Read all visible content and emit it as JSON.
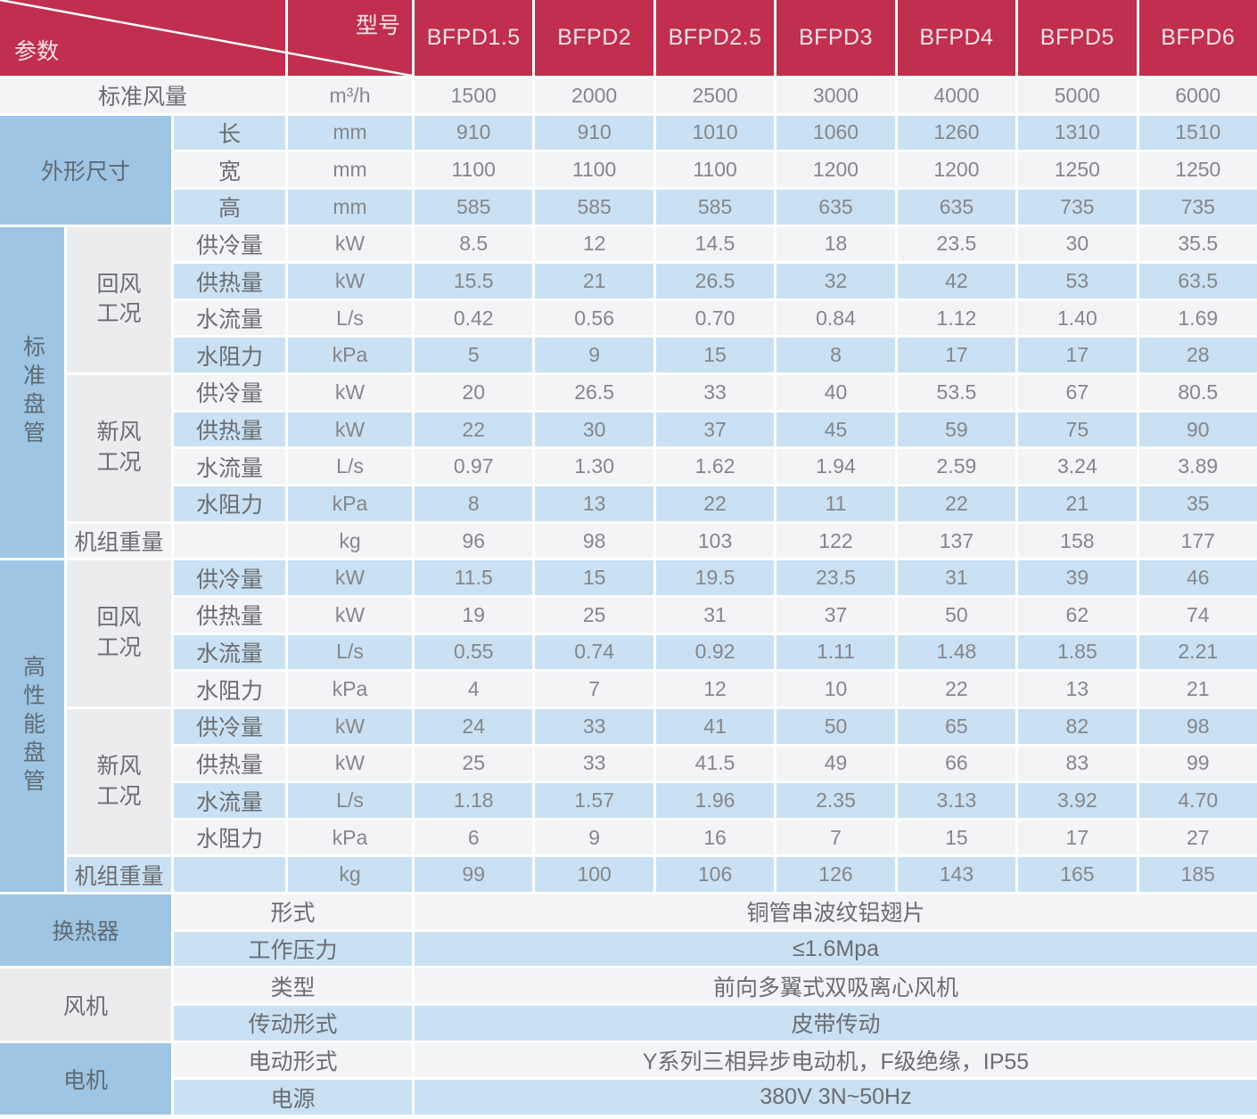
{
  "header": {
    "corner_top_label": "型号",
    "corner_bottom_label": "参数",
    "models": [
      "BFPD1.5",
      "BFPD2",
      "BFPD2.5",
      "BFPD3",
      "BFPD4",
      "BFPD5",
      "BFPD6"
    ]
  },
  "airflow": {
    "label": "标准风量",
    "unit": "m³/h",
    "values": [
      "1500",
      "2000",
      "2500",
      "3000",
      "4000",
      "5000",
      "6000"
    ]
  },
  "dimensions": {
    "label": "外形尺寸",
    "rows": [
      {
        "label": "长",
        "unit": "mm",
        "values": [
          "910",
          "910",
          "1010",
          "1060",
          "1260",
          "1310",
          "1510"
        ]
      },
      {
        "label": "宽",
        "unit": "mm",
        "values": [
          "1100",
          "1100",
          "1100",
          "1200",
          "1200",
          "1250",
          "1250"
        ]
      },
      {
        "label": "高",
        "unit": "mm",
        "values": [
          "585",
          "585",
          "585",
          "635",
          "635",
          "735",
          "735"
        ]
      }
    ]
  },
  "coil_sections": [
    {
      "label": "标准盘管",
      "groups": [
        {
          "label": "回风\n工况",
          "rows": [
            {
              "label": "供冷量",
              "unit": "kW",
              "values": [
                "8.5",
                "12",
                "14.5",
                "18",
                "23.5",
                "30",
                "35.5"
              ]
            },
            {
              "label": "供热量",
              "unit": "kW",
              "values": [
                "15.5",
                "21",
                "26.5",
                "32",
                "42",
                "53",
                "63.5"
              ]
            },
            {
              "label": "水流量",
              "unit": "L/s",
              "values": [
                "0.42",
                "0.56",
                "0.70",
                "0.84",
                "1.12",
                "1.40",
                "1.69"
              ]
            },
            {
              "label": "水阻力",
              "unit": "kPa",
              "values": [
                "5",
                "9",
                "15",
                "8",
                "17",
                "17",
                "28"
              ]
            }
          ]
        },
        {
          "label": "新风\n工况",
          "rows": [
            {
              "label": "供冷量",
              "unit": "kW",
              "values": [
                "20",
                "26.5",
                "33",
                "40",
                "53.5",
                "67",
                "80.5"
              ]
            },
            {
              "label": "供热量",
              "unit": "kW",
              "values": [
                "22",
                "30",
                "37",
                "45",
                "59",
                "75",
                "90"
              ]
            },
            {
              "label": "水流量",
              "unit": "L/s",
              "values": [
                "0.97",
                "1.30",
                "1.62",
                "1.94",
                "2.59",
                "3.24",
                "3.89"
              ]
            },
            {
              "label": "水阻力",
              "unit": "kPa",
              "values": [
                "8",
                "13",
                "22",
                "11",
                "22",
                "21",
                "35"
              ]
            }
          ]
        }
      ],
      "weight_row": {
        "label": "机组重量",
        "unit": "kg",
        "values": [
          "96",
          "98",
          "103",
          "122",
          "137",
          "158",
          "177"
        ]
      }
    },
    {
      "label": "高性能盘管",
      "groups": [
        {
          "label": "回风\n工况",
          "rows": [
            {
              "label": "供冷量",
              "unit": "kW",
              "values": [
                "11.5",
                "15",
                "19.5",
                "23.5",
                "31",
                "39",
                "46"
              ]
            },
            {
              "label": "供热量",
              "unit": "kW",
              "values": [
                "19",
                "25",
                "31",
                "37",
                "50",
                "62",
                "74"
              ]
            },
            {
              "label": "水流量",
              "unit": "L/s",
              "values": [
                "0.55",
                "0.74",
                "0.92",
                "1.11",
                "1.48",
                "1.85",
                "2.21"
              ]
            },
            {
              "label": "水阻力",
              "unit": "kPa",
              "values": [
                "4",
                "7",
                "12",
                "10",
                "22",
                "13",
                "21"
              ]
            }
          ]
        },
        {
          "label": "新风\n工况",
          "rows": [
            {
              "label": "供冷量",
              "unit": "kW",
              "values": [
                "24",
                "33",
                "41",
                "50",
                "65",
                "82",
                "98"
              ]
            },
            {
              "label": "供热量",
              "unit": "kW",
              "values": [
                "25",
                "33",
                "41.5",
                "49",
                "66",
                "83",
                "99"
              ]
            },
            {
              "label": "水流量",
              "unit": "L/s",
              "values": [
                "1.18",
                "1.57",
                "1.96",
                "2.35",
                "3.13",
                "3.92",
                "4.70"
              ]
            },
            {
              "label": "水阻力",
              "unit": "kPa",
              "values": [
                "6",
                "9",
                "16",
                "7",
                "15",
                "17",
                "27"
              ]
            }
          ]
        }
      ],
      "weight_row": {
        "label": "机组重量",
        "unit": "kg",
        "values": [
          "99",
          "100",
          "106",
          "126",
          "143",
          "165",
          "185"
        ]
      }
    }
  ],
  "spec_sections": [
    {
      "label": "换热器",
      "rows": [
        {
          "label": "形式",
          "value": "铜管串波纹铝翅片"
        },
        {
          "label": "工作压力",
          "value": "≤1.6Mpa"
        }
      ]
    },
    {
      "label": "风机",
      "rows": [
        {
          "label": "类型",
          "value": "前向多翼式双吸离心风机"
        },
        {
          "label": "传动形式",
          "value": "皮带传动"
        }
      ]
    },
    {
      "label": "电机",
      "rows": [
        {
          "label": "电动形式",
          "value": "Y系列三相异步电动机，F级绝缘，IP55"
        },
        {
          "label": "电源",
          "value": "380V 3N~50Hz"
        }
      ]
    }
  ],
  "colors": {
    "header_red": "#C22E4D",
    "section_blue": "#9EC6E4",
    "row_blue": "#C9E1F3",
    "row_white": "#F3F4F6",
    "cell_gray": "#EBECEE"
  }
}
